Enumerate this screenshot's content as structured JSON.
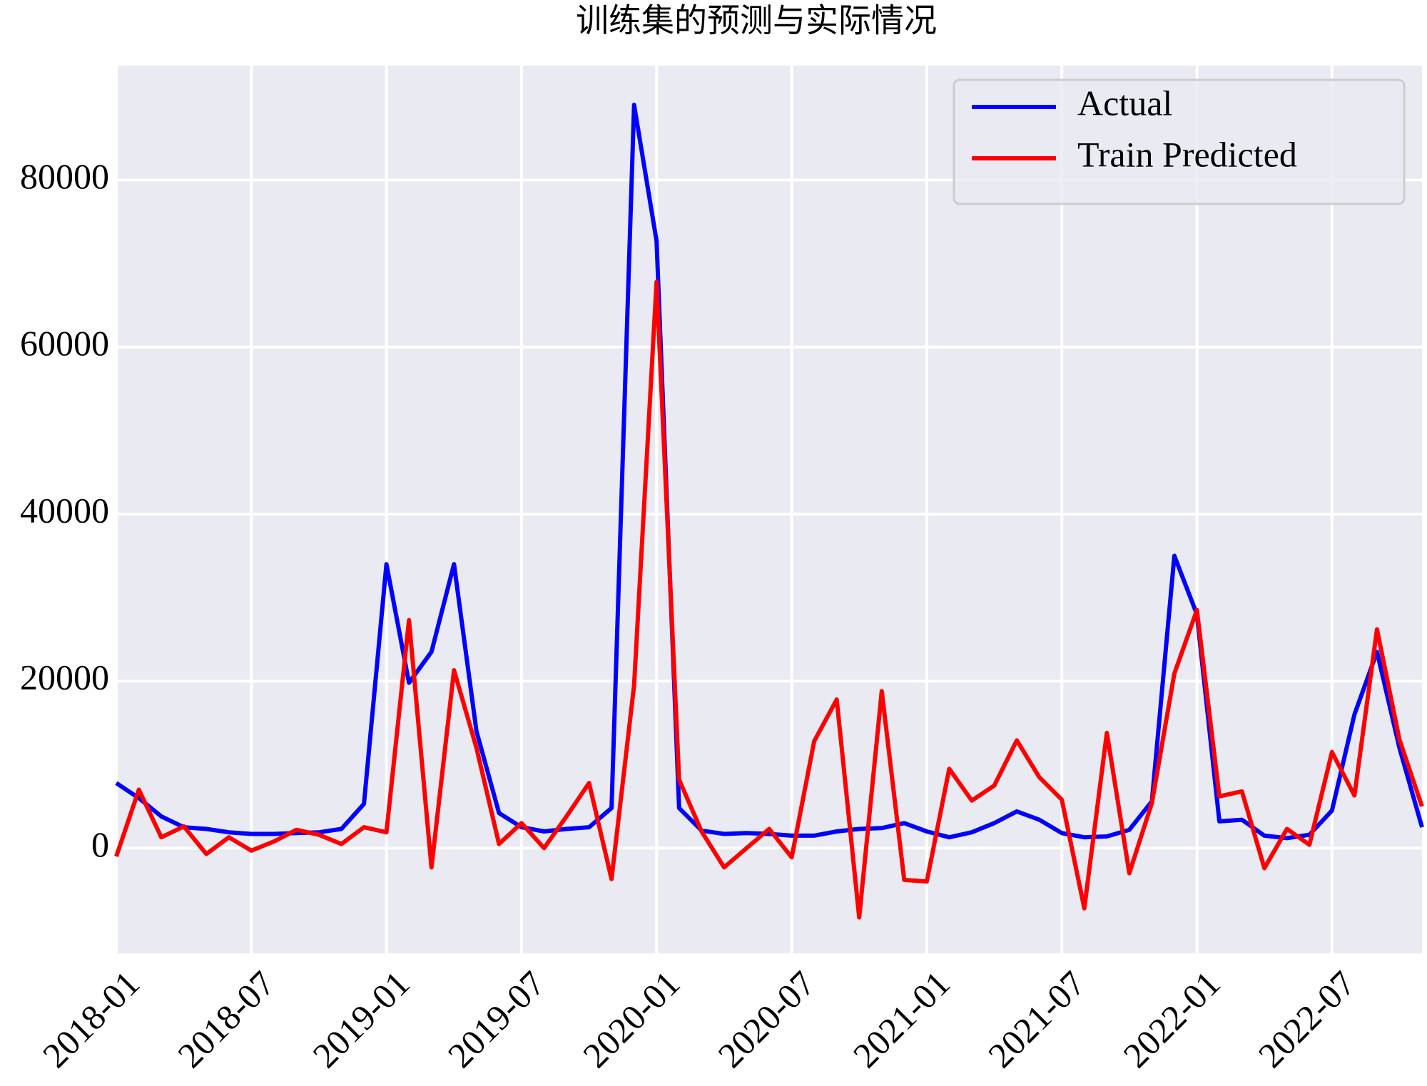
{
  "chart_data": {
    "type": "line",
    "title": "训练集的预测与实际情况",
    "x": [
      "2018-01",
      "2018-02",
      "2018-03",
      "2018-04",
      "2018-05",
      "2018-06",
      "2018-07",
      "2018-08",
      "2018-09",
      "2018-10",
      "2018-11",
      "2018-12",
      "2019-01",
      "2019-02",
      "2019-03",
      "2019-04",
      "2019-05",
      "2019-06",
      "2019-07",
      "2019-08",
      "2019-09",
      "2019-10",
      "2019-11",
      "2019-12",
      "2020-01",
      "2020-02",
      "2020-03",
      "2020-04",
      "2020-05",
      "2020-06",
      "2020-07",
      "2020-08",
      "2020-09",
      "2020-10",
      "2020-11",
      "2020-12",
      "2021-01",
      "2021-02",
      "2021-03",
      "2021-04",
      "2021-05",
      "2021-06",
      "2021-07",
      "2021-08",
      "2021-09",
      "2021-10",
      "2021-11",
      "2021-12",
      "2022-01",
      "2022-02",
      "2022-03",
      "2022-04",
      "2022-05",
      "2022-06",
      "2022-07",
      "2022-08",
      "2022-09",
      "2022-10",
      "2022-11"
    ],
    "series": [
      {
        "name": "Actual",
        "color": "#0000ff",
        "values": [
          7800,
          6000,
          3800,
          2500,
          2300,
          1900,
          1700,
          1700,
          1800,
          1900,
          2300,
          5300,
          34000,
          19800,
          23500,
          34000,
          14000,
          4200,
          2500,
          2000,
          2300,
          2500,
          4800,
          89000,
          72700,
          4800,
          2100,
          1700,
          1800,
          1700,
          1500,
          1500,
          2000,
          2300,
          2400,
          3000,
          2000,
          1300,
          1900,
          3000,
          4400,
          3400,
          1800,
          1300,
          1400,
          2200,
          5600,
          35000,
          28000,
          3200,
          3400,
          1500,
          1200,
          1600,
          4500,
          16000,
          23500,
          12000,
          2500
        ]
      },
      {
        "name": "Train Predicted",
        "color": "#ff0000",
        "values": [
          -1000,
          7000,
          1300,
          2600,
          -700,
          1300,
          -300,
          800,
          2200,
          1600,
          500,
          2500,
          1900,
          27300,
          -2300,
          21300,
          12000,
          500,
          3000,
          0,
          3800,
          7800,
          -3700,
          19500,
          67800,
          8200,
          2000,
          -2300,
          0,
          2300,
          -1100,
          12800,
          17800,
          -8300,
          18800,
          -3800,
          -4000,
          9500,
          5700,
          7500,
          12900,
          8500,
          5800,
          -7200,
          13800,
          -3000,
          5400,
          20900,
          28500,
          6200,
          6800,
          -2400,
          2300,
          400,
          11500,
          6300,
          26200,
          13000,
          5000
        ]
      }
    ],
    "xlim": [
      "2018-01",
      "2022-11"
    ],
    "xticks": [
      "2018-01",
      "2018-07",
      "2019-01",
      "2019-07",
      "2020-01",
      "2020-07",
      "2021-01",
      "2021-07",
      "2022-01",
      "2022-07"
    ],
    "ylim": [
      -12600,
      93700
    ],
    "yticks": [
      0,
      20000,
      40000,
      60000,
      80000
    ],
    "grid": true,
    "legend": "upper right"
  }
}
